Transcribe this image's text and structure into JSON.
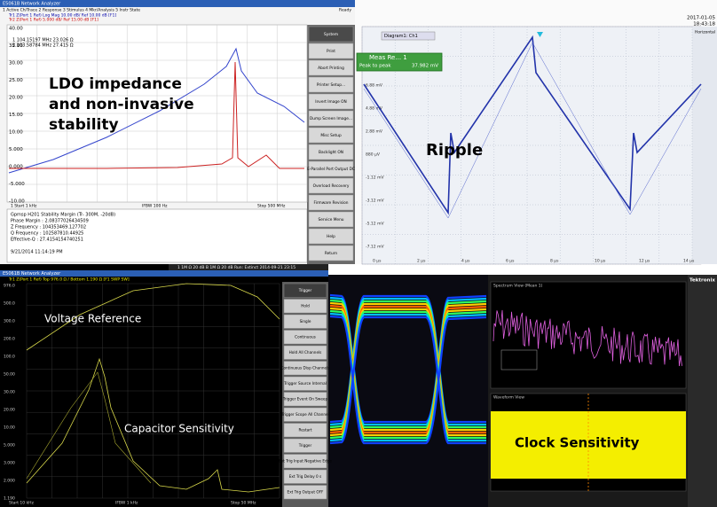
{
  "ldo": {
    "window_title": "E5061B Network Analyzer",
    "menu": "1 Active Ch/Trace   2 Response   3 Stimulus   4 Mkr/Analysis   5 Instr State",
    "status": "Ready",
    "trace_lines": [
      "Tr1 Z(Port 1 Ref) Log Mag 10.00 dB/ Ref 10.00 dB [F1]",
      "Tr2 Z(Port 1 Ref) 5.000 dB/ Ref 15.00 dB [F1]"
    ],
    "marker_lines": [
      "1  104.15197 MHz  23.026 Ω",
      "2  103.58784 MHz  27.415 Ω"
    ],
    "yticks": [
      "40.00",
      "35.00",
      "30.00",
      "25.00",
      "20.00",
      "15.00",
      "10.00",
      "5.000",
      "0.000",
      "-5.000",
      "-10.00"
    ],
    "start": "1 Start 1 kHz",
    "ifbw": "IFBW 100 Hz",
    "stop": "Stop 500 MHz",
    "label": [
      "LDO impedance",
      "and non-invasive",
      "stability"
    ],
    "softkeys": [
      "System",
      "Print",
      "Abort Printing",
      "Printer Setup...",
      "Invert Image ON",
      "Dump Screen Image...",
      "Misc Setup",
      "Backlight ON",
      "E-Parallel Port Output DC",
      "Overload Recovery",
      "Firmware Revision",
      "Service Menu",
      "Help",
      "Return"
    ],
    "analysis": [
      "Gpmsp H201 Stability Margin (Tr- 300M, -20dB)",
      "Phase Margin : 2.08377026434509",
      "Z Frequency : 104353469.127702",
      "Q Frequency : 102587810.44925",
      "Effective-Q : 27.4154154740251"
    ],
    "timestamp": "9/21/2014 11:14:19 PM"
  },
  "ripple": {
    "tab": "Diagram1: Ch1",
    "meas_title": "Meas Re... 1",
    "meas_name": "Peak to peak",
    "meas_value": "37.982 mV",
    "datetime": [
      "2017-01-05",
      "18:43:18"
    ],
    "label": "Ripple",
    "side_title": "Horizontal",
    "yticks": [
      "6.88 mV",
      "4.88 mV",
      "2.88 mV",
      "880 µV",
      "-1.12 mV",
      "-3.12 mV",
      "-5.12 mV",
      "-7.12 mV"
    ],
    "xticks": [
      "0 µs",
      "2 µs",
      "4 µs",
      "6 µs",
      "8 µs",
      "10 µs",
      "12 µs",
      "14 µs"
    ],
    "status": "1 1M Ω 20 dB   B 1M Ω 20 dB   Run: Extinct 2014-09-21 23:15"
  },
  "vref": {
    "window_title": "E5061B Network Analyzer",
    "header": "Tr1 Z(Port 1 Ref) Top 976.0 Ω / Bottom 1.190 Ω [F1 SWP SW]",
    "yticks": [
      "976.0",
      "500.0",
      "300.0",
      "200.0",
      "100.0",
      "50.00",
      "30.00",
      "20.00",
      "10.00",
      "5.000",
      "3.000",
      "2.000",
      "1.190"
    ],
    "label_top": "Voltage Reference",
    "label_bottom": "Capacitor Sensitivity",
    "softkeys": [
      "Trigger",
      "Hold",
      "Single",
      "Continuous",
      "Hold All Channels",
      "Continuous Disp Channels",
      "Trigger Source Internal",
      "Trigger Event On Sweep",
      "Trigger Scope All Channel",
      "Restart",
      "Trigger",
      "Ext Trig Input Negative Edge",
      "Ext Trig Delay 0 s",
      "Ext Trig Output OFF"
    ],
    "start": "Start 10 kHz",
    "ifbw": "IFBW 1 kHz",
    "stop": "Stop 50 MHz"
  },
  "clock": {
    "spectrum_title": "Spectrum View (Mean 1)",
    "waveform_title": "Waveform View",
    "label": "Clock Sensitivity",
    "brand": "Tektronix"
  }
}
